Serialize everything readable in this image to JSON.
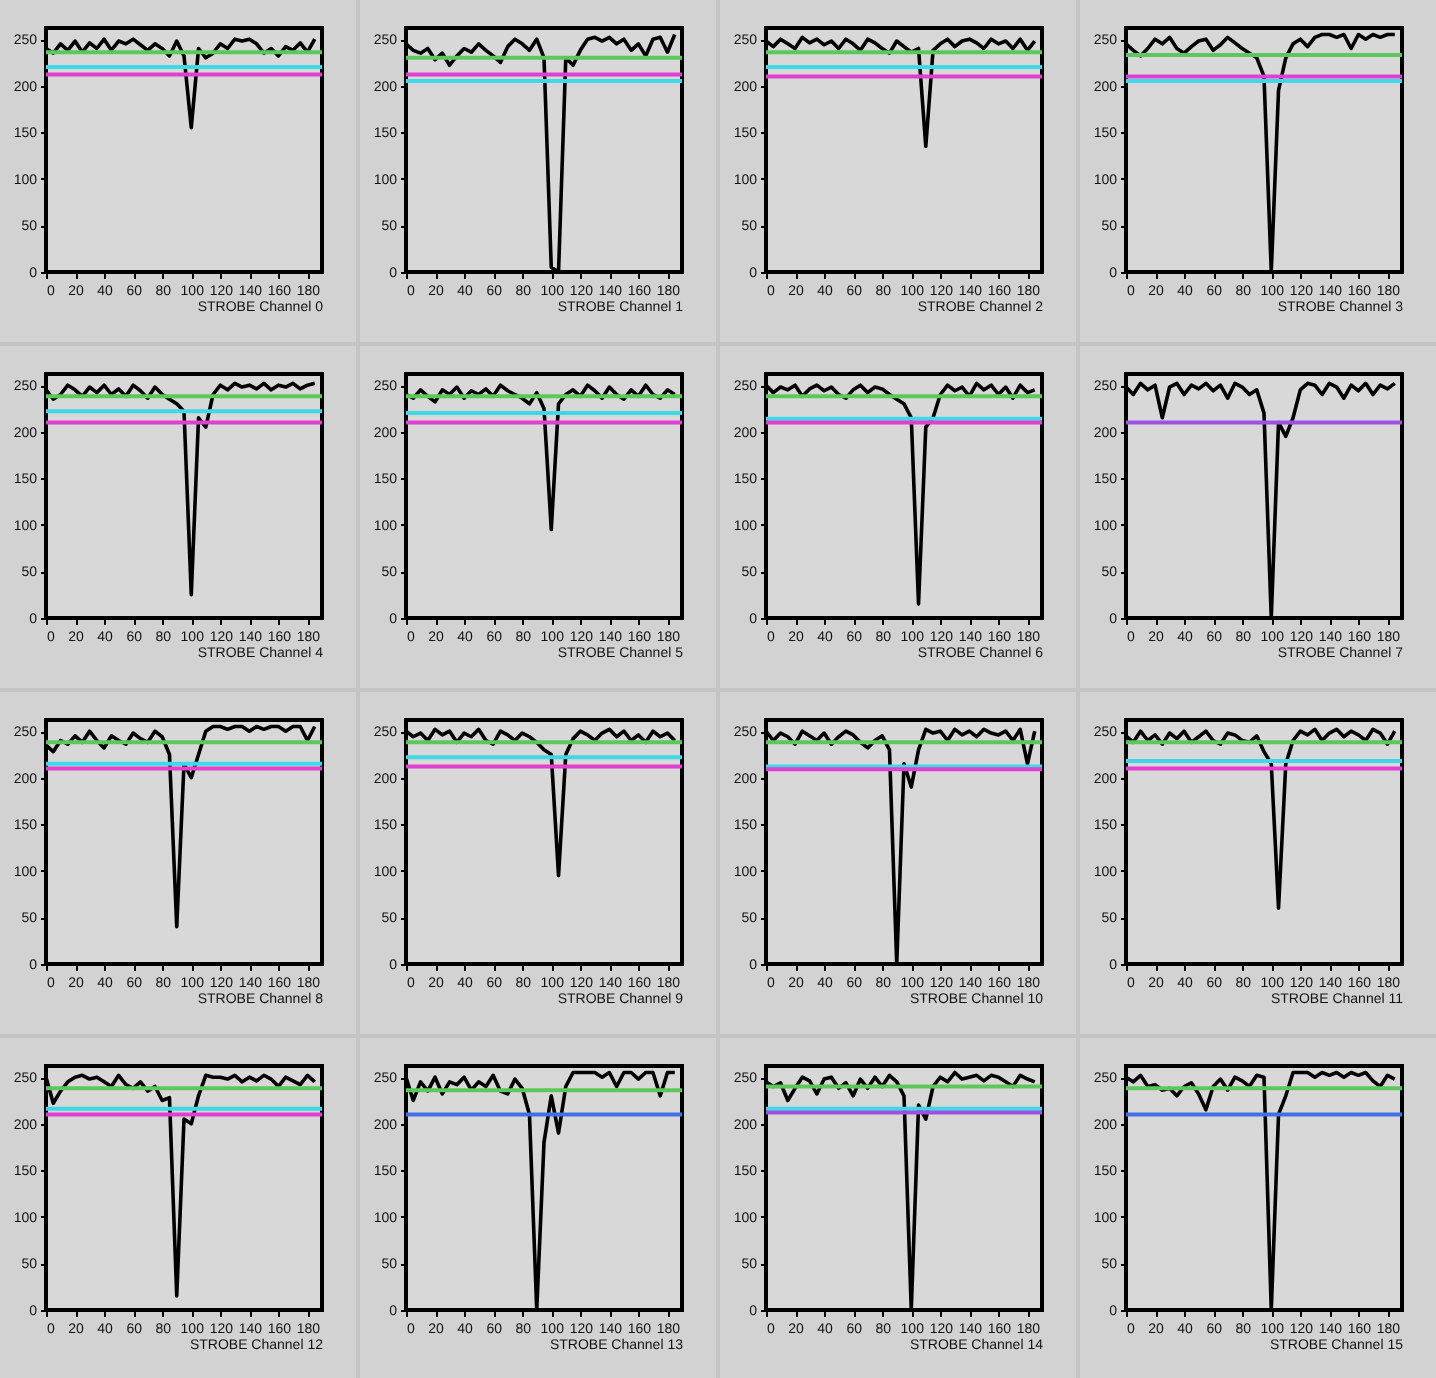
{
  "chart_data": [
    {
      "type": "line",
      "xlabel": "STROBE Channel 0",
      "x": [
        0,
        5,
        10,
        15,
        20,
        25,
        30,
        35,
        40,
        45,
        50,
        55,
        60,
        65,
        70,
        75,
        80,
        85,
        90,
        95,
        100,
        105,
        110,
        115,
        120,
        125,
        130,
        135,
        140,
        145,
        150,
        155,
        160,
        165,
        170,
        175,
        180,
        185
      ],
      "series": [
        {
          "color": "#000000",
          "values": [
            240,
            235,
            245,
            238,
            248,
            236,
            246,
            240,
            250,
            238,
            248,
            245,
            250,
            244,
            238,
            245,
            240,
            232,
            248,
            232,
            155,
            240,
            230,
            235,
            245,
            240,
            250,
            248,
            250,
            245,
            235,
            240,
            232,
            242,
            238,
            246,
            236,
            250
          ]
        }
      ],
      "xlim": [
        0,
        190
      ],
      "ylim": [
        0,
        262
      ],
      "xticks": [
        0,
        20,
        40,
        60,
        80,
        100,
        120,
        140,
        160,
        180
      ],
      "yticks": [
        0,
        50,
        100,
        150,
        200,
        250
      ],
      "ref_lines": [
        {
          "axis": "y",
          "value": 236,
          "color": "#5cc85c"
        },
        {
          "axis": "y",
          "value": 220,
          "color": "#40d8e8"
        },
        {
          "axis": "y",
          "value": 212,
          "color": "#e040d0"
        }
      ]
    },
    {
      "type": "line",
      "xlabel": "STROBE Channel 1",
      "x": [
        0,
        5,
        10,
        15,
        20,
        25,
        30,
        35,
        40,
        45,
        50,
        55,
        60,
        65,
        70,
        75,
        80,
        85,
        90,
        95,
        100,
        105,
        110,
        115,
        120,
        125,
        130,
        135,
        140,
        145,
        150,
        155,
        160,
        165,
        170,
        175,
        180,
        185
      ],
      "series": [
        {
          "color": "#000000",
          "values": [
            245,
            238,
            235,
            240,
            228,
            235,
            222,
            232,
            240,
            236,
            245,
            238,
            232,
            225,
            242,
            250,
            245,
            238,
            250,
            230,
            5,
            0,
            230,
            222,
            238,
            250,
            252,
            248,
            252,
            245,
            250,
            238,
            245,
            232,
            250,
            252,
            236,
            255
          ]
        }
      ],
      "xlim": [
        0,
        190
      ],
      "ylim": [
        0,
        262
      ],
      "xticks": [
        0,
        20,
        40,
        60,
        80,
        100,
        120,
        140,
        160,
        180
      ],
      "yticks": [
        0,
        50,
        100,
        150,
        200,
        250
      ],
      "ref_lines": [
        {
          "axis": "y",
          "value": 230,
          "color": "#5cc85c"
        },
        {
          "axis": "y",
          "value": 212,
          "color": "#e040d0"
        },
        {
          "axis": "y",
          "value": 205,
          "color": "#40d8e8"
        }
      ]
    },
    {
      "type": "line",
      "xlabel": "STROBE Channel 2",
      "x": [
        0,
        5,
        10,
        15,
        20,
        25,
        30,
        35,
        40,
        45,
        50,
        55,
        60,
        65,
        70,
        75,
        80,
        85,
        90,
        95,
        100,
        105,
        110,
        115,
        120,
        125,
        130,
        135,
        140,
        145,
        150,
        155,
        160,
        165,
        170,
        175,
        180,
        185
      ],
      "series": [
        {
          "color": "#000000",
          "values": [
            248,
            242,
            250,
            245,
            240,
            252,
            246,
            250,
            244,
            248,
            240,
            250,
            245,
            238,
            250,
            246,
            240,
            235,
            248,
            242,
            236,
            240,
            135,
            238,
            245,
            250,
            242,
            248,
            250,
            246,
            240,
            250,
            245,
            248,
            240,
            250,
            238,
            248
          ]
        }
      ],
      "xlim": [
        0,
        190
      ],
      "ylim": [
        0,
        262
      ],
      "xticks": [
        0,
        20,
        40,
        60,
        80,
        100,
        120,
        140,
        160,
        180
      ],
      "yticks": [
        0,
        50,
        100,
        150,
        200,
        250
      ],
      "ref_lines": [
        {
          "axis": "y",
          "value": 236,
          "color": "#5cc85c"
        },
        {
          "axis": "y",
          "value": 220,
          "color": "#40d8e8"
        },
        {
          "axis": "y",
          "value": 210,
          "color": "#e040d0"
        }
      ]
    },
    {
      "type": "line",
      "xlabel": "STROBE Channel 3",
      "x": [
        0,
        5,
        10,
        15,
        20,
        25,
        30,
        35,
        40,
        45,
        50,
        55,
        60,
        65,
        70,
        75,
        80,
        85,
        90,
        95,
        100,
        105,
        110,
        115,
        120,
        125,
        130,
        135,
        140,
        145,
        150,
        155,
        160,
        165,
        170,
        175,
        180,
        185
      ],
      "series": [
        {
          "color": "#000000",
          "values": [
            245,
            238,
            232,
            240,
            250,
            245,
            252,
            240,
            235,
            242,
            248,
            250,
            238,
            244,
            252,
            246,
            240,
            235,
            230,
            210,
            0,
            195,
            230,
            245,
            250,
            242,
            252,
            255,
            255,
            252,
            255,
            240,
            255,
            250,
            255,
            252,
            255,
            255
          ]
        }
      ],
      "xlim": [
        0,
        190
      ],
      "ylim": [
        0,
        262
      ],
      "xticks": [
        0,
        20,
        40,
        60,
        80,
        100,
        120,
        140,
        160,
        180
      ],
      "yticks": [
        0,
        50,
        100,
        150,
        200,
        250
      ],
      "ref_lines": [
        {
          "axis": "y",
          "value": 233,
          "color": "#5cc85c"
        },
        {
          "axis": "y",
          "value": 210,
          "color": "#e040d0"
        },
        {
          "axis": "y",
          "value": 205,
          "color": "#40d8e8"
        }
      ]
    },
    {
      "type": "line",
      "xlabel": "STROBE Channel 4",
      "x": [
        0,
        5,
        10,
        15,
        20,
        25,
        30,
        35,
        40,
        45,
        50,
        55,
        60,
        65,
        70,
        75,
        80,
        85,
        90,
        95,
        100,
        105,
        110,
        115,
        120,
        125,
        130,
        135,
        140,
        145,
        150,
        155,
        160,
        165,
        170,
        175,
        180,
        185
      ],
      "series": [
        {
          "color": "#000000",
          "values": [
            245,
            235,
            240,
            250,
            245,
            238,
            248,
            242,
            250,
            240,
            246,
            238,
            250,
            244,
            236,
            248,
            240,
            235,
            230,
            222,
            25,
            215,
            205,
            240,
            250,
            245,
            252,
            248,
            250,
            246,
            252,
            245,
            250,
            248,
            252,
            246,
            250,
            252
          ]
        }
      ],
      "xlim": [
        0,
        190
      ],
      "ylim": [
        0,
        262
      ],
      "xticks": [
        0,
        20,
        40,
        60,
        80,
        100,
        120,
        140,
        160,
        180
      ],
      "yticks": [
        0,
        50,
        100,
        150,
        200,
        250
      ],
      "ref_lines": [
        {
          "axis": "y",
          "value": 238,
          "color": "#5cc85c"
        },
        {
          "axis": "y",
          "value": 222,
          "color": "#40d8e8"
        },
        {
          "axis": "y",
          "value": 210,
          "color": "#e040d0"
        }
      ]
    },
    {
      "type": "line",
      "xlabel": "STROBE Channel 5",
      "x": [
        0,
        5,
        10,
        15,
        20,
        25,
        30,
        35,
        40,
        45,
        50,
        55,
        60,
        65,
        70,
        75,
        80,
        85,
        90,
        95,
        100,
        105,
        110,
        115,
        120,
        125,
        130,
        135,
        140,
        145,
        150,
        155,
        160,
        165,
        170,
        175,
        180,
        185
      ],
      "series": [
        {
          "color": "#000000",
          "values": [
            240,
            236,
            245,
            238,
            232,
            245,
            240,
            248,
            236,
            244,
            240,
            246,
            238,
            250,
            244,
            240,
            236,
            230,
            242,
            225,
            95,
            230,
            240,
            245,
            238,
            250,
            244,
            236,
            248,
            240,
            235,
            245,
            238,
            250,
            240,
            236,
            245,
            240
          ]
        }
      ],
      "xlim": [
        0,
        190
      ],
      "ylim": [
        0,
        262
      ],
      "xticks": [
        0,
        20,
        40,
        60,
        80,
        100,
        120,
        140,
        160,
        180
      ],
      "yticks": [
        0,
        50,
        100,
        150,
        200,
        250
      ],
      "ref_lines": [
        {
          "axis": "y",
          "value": 238,
          "color": "#5cc85c"
        },
        {
          "axis": "y",
          "value": 220,
          "color": "#40d8e8"
        },
        {
          "axis": "y",
          "value": 210,
          "color": "#e040d0"
        }
      ]
    },
    {
      "type": "line",
      "xlabel": "STROBE Channel 6",
      "x": [
        0,
        5,
        10,
        15,
        20,
        25,
        30,
        35,
        40,
        45,
        50,
        55,
        60,
        65,
        70,
        75,
        80,
        85,
        90,
        95,
        100,
        105,
        110,
        115,
        120,
        125,
        130,
        135,
        140,
        145,
        150,
        155,
        160,
        165,
        170,
        175,
        180,
        185
      ],
      "series": [
        {
          "color": "#000000",
          "values": [
            250,
            242,
            248,
            245,
            250,
            238,
            246,
            250,
            244,
            248,
            240,
            236,
            245,
            250,
            242,
            248,
            246,
            240,
            235,
            230,
            215,
            15,
            205,
            215,
            240,
            250,
            244,
            248,
            238,
            252,
            245,
            250,
            240,
            248,
            236,
            250,
            242,
            245
          ]
        }
      ],
      "xlim": [
        0,
        190
      ],
      "ylim": [
        0,
        262
      ],
      "xticks": [
        0,
        20,
        40,
        60,
        80,
        100,
        120,
        140,
        160,
        180
      ],
      "yticks": [
        0,
        50,
        100,
        150,
        200,
        250
      ],
      "ref_lines": [
        {
          "axis": "y",
          "value": 238,
          "color": "#5cc85c"
        },
        {
          "axis": "y",
          "value": 214,
          "color": "#40d8e8"
        },
        {
          "axis": "y",
          "value": 210,
          "color": "#e040d0"
        }
      ]
    },
    {
      "type": "line",
      "xlabel": "STROBE Channel 7",
      "x": [
        0,
        5,
        10,
        15,
        20,
        25,
        30,
        35,
        40,
        45,
        50,
        55,
        60,
        65,
        70,
        75,
        80,
        85,
        90,
        95,
        100,
        105,
        110,
        115,
        120,
        125,
        130,
        135,
        140,
        145,
        150,
        155,
        160,
        165,
        170,
        175,
        180,
        185
      ],
      "series": [
        {
          "color": "#000000",
          "values": [
            248,
            240,
            252,
            245,
            250,
            215,
            248,
            252,
            240,
            250,
            246,
            252,
            244,
            250,
            236,
            252,
            248,
            240,
            245,
            220,
            0,
            210,
            195,
            215,
            245,
            252,
            250,
            240,
            252,
            248,
            236,
            250,
            244,
            252,
            240,
            250,
            246,
            252
          ]
        }
      ],
      "xlim": [
        0,
        190
      ],
      "ylim": [
        0,
        262
      ],
      "xticks": [
        0,
        20,
        40,
        60,
        80,
        100,
        120,
        140,
        160,
        180
      ],
      "yticks": [
        0,
        50,
        100,
        150,
        200,
        250
      ],
      "ref_lines": [
        {
          "axis": "y",
          "value": 210,
          "color": "#a050e0"
        }
      ]
    },
    {
      "type": "line",
      "xlabel": "STROBE Channel 8",
      "x": [
        0,
        5,
        10,
        15,
        20,
        25,
        30,
        35,
        40,
        45,
        50,
        55,
        60,
        65,
        70,
        75,
        80,
        85,
        90,
        95,
        100,
        105,
        110,
        115,
        120,
        125,
        130,
        135,
        140,
        145,
        150,
        155,
        160,
        165,
        170,
        175,
        180,
        185
      ],
      "series": [
        {
          "color": "#000000",
          "values": [
            235,
            228,
            240,
            236,
            245,
            238,
            250,
            240,
            232,
            245,
            240,
            236,
            248,
            242,
            238,
            250,
            244,
            225,
            40,
            215,
            200,
            225,
            250,
            255,
            255,
            252,
            255,
            255,
            250,
            255,
            252,
            255,
            255,
            250,
            255,
            255,
            240,
            255
          ]
        }
      ],
      "xlim": [
        0,
        190
      ],
      "ylim": [
        0,
        262
      ],
      "xticks": [
        0,
        20,
        40,
        60,
        80,
        100,
        120,
        140,
        160,
        180
      ],
      "yticks": [
        0,
        50,
        100,
        150,
        200,
        250
      ],
      "ref_lines": [
        {
          "axis": "y",
          "value": 238,
          "color": "#5cc85c"
        },
        {
          "axis": "y",
          "value": 215,
          "color": "#40d8e8"
        },
        {
          "axis": "y",
          "value": 210,
          "color": "#e040d0"
        }
      ]
    },
    {
      "type": "line",
      "xlabel": "STROBE Channel 9",
      "x": [
        0,
        5,
        10,
        15,
        20,
        25,
        30,
        35,
        40,
        45,
        50,
        55,
        60,
        65,
        70,
        75,
        80,
        85,
        90,
        95,
        100,
        105,
        110,
        115,
        120,
        125,
        130,
        135,
        140,
        145,
        150,
        155,
        160,
        165,
        170,
        175,
        180,
        185
      ],
      "series": [
        {
          "color": "#000000",
          "values": [
            250,
            244,
            248,
            240,
            252,
            246,
            250,
            238,
            248,
            244,
            252,
            240,
            236,
            250,
            246,
            240,
            248,
            244,
            238,
            230,
            225,
            95,
            225,
            242,
            250,
            246,
            240,
            248,
            252,
            244,
            250,
            240,
            246,
            238,
            250,
            244,
            248,
            240
          ]
        }
      ],
      "xlim": [
        0,
        190
      ],
      "ylim": [
        0,
        262
      ],
      "xticks": [
        0,
        20,
        40,
        60,
        80,
        100,
        120,
        140,
        160,
        180
      ],
      "yticks": [
        0,
        50,
        100,
        150,
        200,
        250
      ],
      "ref_lines": [
        {
          "axis": "y",
          "value": 238,
          "color": "#5cc85c"
        },
        {
          "axis": "y",
          "value": 222,
          "color": "#40d8e8"
        },
        {
          "axis": "y",
          "value": 212,
          "color": "#e040d0"
        }
      ]
    },
    {
      "type": "line",
      "xlabel": "STROBE Channel 10",
      "x": [
        0,
        5,
        10,
        15,
        20,
        25,
        30,
        35,
        40,
        45,
        50,
        55,
        60,
        65,
        70,
        75,
        80,
        85,
        90,
        95,
        100,
        105,
        110,
        115,
        120,
        125,
        130,
        135,
        140,
        145,
        150,
        155,
        160,
        165,
        170,
        175,
        180,
        185
      ],
      "series": [
        {
          "color": "#000000",
          "values": [
            250,
            240,
            248,
            244,
            236,
            250,
            245,
            240,
            248,
            236,
            244,
            250,
            246,
            238,
            232,
            240,
            245,
            230,
            0,
            215,
            190,
            230,
            252,
            248,
            250,
            240,
            252,
            246,
            250,
            244,
            252,
            248,
            246,
            250,
            240,
            252,
            215,
            250
          ]
        }
      ],
      "xlim": [
        0,
        190
      ],
      "ylim": [
        0,
        262
      ],
      "xticks": [
        0,
        20,
        40,
        60,
        80,
        100,
        120,
        140,
        160,
        180
      ],
      "yticks": [
        0,
        50,
        100,
        150,
        200,
        250
      ],
      "ref_lines": [
        {
          "axis": "y",
          "value": 238,
          "color": "#5cc85c"
        },
        {
          "axis": "y",
          "value": 212,
          "color": "#40d8e8"
        },
        {
          "axis": "y",
          "value": 209,
          "color": "#e040d0"
        }
      ]
    },
    {
      "type": "line",
      "xlabel": "STROBE Channel 11",
      "x": [
        0,
        5,
        10,
        15,
        20,
        25,
        30,
        35,
        40,
        45,
        50,
        55,
        60,
        65,
        70,
        75,
        80,
        85,
        90,
        95,
        100,
        105,
        110,
        115,
        120,
        125,
        130,
        135,
        140,
        145,
        150,
        155,
        160,
        165,
        170,
        175,
        180,
        185
      ],
      "series": [
        {
          "color": "#000000",
          "values": [
            245,
            238,
            250,
            240,
            246,
            236,
            248,
            242,
            250,
            238,
            244,
            250,
            240,
            236,
            248,
            246,
            240,
            238,
            245,
            228,
            215,
            60,
            215,
            240,
            250,
            246,
            252,
            240,
            248,
            252,
            244,
            250,
            246,
            240,
            252,
            248,
            236,
            250
          ]
        }
      ],
      "xlim": [
        0,
        190
      ],
      "ylim": [
        0,
        262
      ],
      "xticks": [
        0,
        20,
        40,
        60,
        80,
        100,
        120,
        140,
        160,
        180
      ],
      "yticks": [
        0,
        50,
        100,
        150,
        200,
        250
      ],
      "ref_lines": [
        {
          "axis": "y",
          "value": 238,
          "color": "#5cc85c"
        },
        {
          "axis": "y",
          "value": 218,
          "color": "#40d8e8"
        },
        {
          "axis": "y",
          "value": 210,
          "color": "#e040d0"
        }
      ]
    },
    {
      "type": "line",
      "xlabel": "STROBE Channel 12",
      "x": [
        0,
        5,
        10,
        15,
        20,
        25,
        30,
        35,
        40,
        45,
        50,
        55,
        60,
        65,
        70,
        75,
        80,
        85,
        90,
        95,
        100,
        105,
        110,
        115,
        120,
        125,
        130,
        135,
        140,
        145,
        150,
        155,
        160,
        165,
        170,
        175,
        180,
        185
      ],
      "series": [
        {
          "color": "#000000",
          "values": [
            250,
            222,
            235,
            245,
            250,
            252,
            248,
            250,
            245,
            240,
            252,
            242,
            238,
            245,
            235,
            240,
            225,
            228,
            15,
            205,
            200,
            230,
            252,
            250,
            250,
            248,
            252,
            245,
            250,
            246,
            252,
            248,
            240,
            250,
            246,
            242,
            252,
            245
          ]
        }
      ],
      "xlim": [
        0,
        190
      ],
      "ylim": [
        0,
        262
      ],
      "xticks": [
        0,
        20,
        40,
        60,
        80,
        100,
        120,
        140,
        160,
        180
      ],
      "yticks": [
        0,
        50,
        100,
        150,
        200,
        250
      ],
      "ref_lines": [
        {
          "axis": "y",
          "value": 238,
          "color": "#5cc85c"
        },
        {
          "axis": "y",
          "value": 216,
          "color": "#40d8e8"
        },
        {
          "axis": "y",
          "value": 210,
          "color": "#e040d0"
        }
      ]
    },
    {
      "type": "line",
      "xlabel": "STROBE Channel 13",
      "x": [
        0,
        5,
        10,
        15,
        20,
        25,
        30,
        35,
        40,
        45,
        50,
        55,
        60,
        65,
        70,
        75,
        80,
        85,
        90,
        95,
        100,
        105,
        110,
        115,
        120,
        125,
        130,
        135,
        140,
        145,
        150,
        155,
        160,
        165,
        170,
        175,
        180,
        185
      ],
      "series": [
        {
          "color": "#000000",
          "values": [
            250,
            225,
            245,
            235,
            250,
            232,
            245,
            242,
            250,
            236,
            245,
            240,
            252,
            235,
            232,
            248,
            238,
            210,
            0,
            180,
            230,
            190,
            240,
            255,
            255,
            255,
            255,
            250,
            255,
            240,
            255,
            255,
            248,
            255,
            255,
            230,
            255,
            255
          ]
        }
      ],
      "xlim": [
        0,
        190
      ],
      "ylim": [
        0,
        262
      ],
      "xticks": [
        0,
        20,
        40,
        60,
        80,
        100,
        120,
        140,
        160,
        180
      ],
      "yticks": [
        0,
        50,
        100,
        150,
        200,
        250
      ],
      "ref_lines": [
        {
          "axis": "y",
          "value": 236,
          "color": "#5cc85c"
        },
        {
          "axis": "y",
          "value": 210,
          "color": "#4070e8"
        }
      ]
    },
    {
      "type": "line",
      "xlabel": "STROBE Channel 14",
      "x": [
        0,
        5,
        10,
        15,
        20,
        25,
        30,
        35,
        40,
        45,
        50,
        55,
        60,
        65,
        70,
        75,
        80,
        85,
        90,
        95,
        100,
        105,
        110,
        115,
        120,
        125,
        130,
        135,
        140,
        145,
        150,
        155,
        160,
        165,
        170,
        175,
        180,
        185
      ],
      "series": [
        {
          "color": "#000000",
          "values": [
            245,
            240,
            244,
            225,
            238,
            250,
            246,
            232,
            248,
            250,
            238,
            244,
            230,
            248,
            238,
            250,
            240,
            252,
            245,
            230,
            0,
            220,
            205,
            240,
            250,
            245,
            255,
            248,
            250,
            252,
            246,
            252,
            250,
            245,
            240,
            252,
            248,
            245
          ]
        }
      ],
      "xlim": [
        0,
        190
      ],
      "ylim": [
        0,
        262
      ],
      "xticks": [
        0,
        20,
        40,
        60,
        80,
        100,
        120,
        140,
        160,
        180
      ],
      "yticks": [
        0,
        50,
        100,
        150,
        200,
        250
      ],
      "ref_lines": [
        {
          "axis": "y",
          "value": 240,
          "color": "#5cc85c"
        },
        {
          "axis": "y",
          "value": 216,
          "color": "#40d8e8"
        },
        {
          "axis": "y",
          "value": 212,
          "color": "#a050e0"
        }
      ]
    },
    {
      "type": "line",
      "xlabel": "STROBE Channel 15",
      "x": [
        0,
        5,
        10,
        15,
        20,
        25,
        30,
        35,
        40,
        45,
        50,
        55,
        60,
        65,
        70,
        75,
        80,
        85,
        90,
        95,
        100,
        105,
        110,
        115,
        120,
        125,
        130,
        135,
        140,
        145,
        150,
        155,
        160,
        165,
        170,
        175,
        180,
        185
      ],
      "series": [
        {
          "color": "#000000",
          "values": [
            250,
            245,
            252,
            240,
            242,
            236,
            238,
            230,
            240,
            244,
            232,
            215,
            240,
            248,
            236,
            250,
            246,
            240,
            252,
            250,
            0,
            210,
            230,
            255,
            255,
            255,
            250,
            255,
            252,
            255,
            250,
            255,
            252,
            255,
            246,
            240,
            252,
            248
          ]
        }
      ],
      "xlim": [
        0,
        190
      ],
      "ylim": [
        0,
        262
      ],
      "xticks": [
        0,
        20,
        40,
        60,
        80,
        100,
        120,
        140,
        160,
        180
      ],
      "yticks": [
        0,
        50,
        100,
        150,
        200,
        250
      ],
      "ref_lines": [
        {
          "axis": "y",
          "value": 238,
          "color": "#5cc85c"
        },
        {
          "axis": "y",
          "value": 210,
          "color": "#4070e8"
        }
      ]
    }
  ]
}
